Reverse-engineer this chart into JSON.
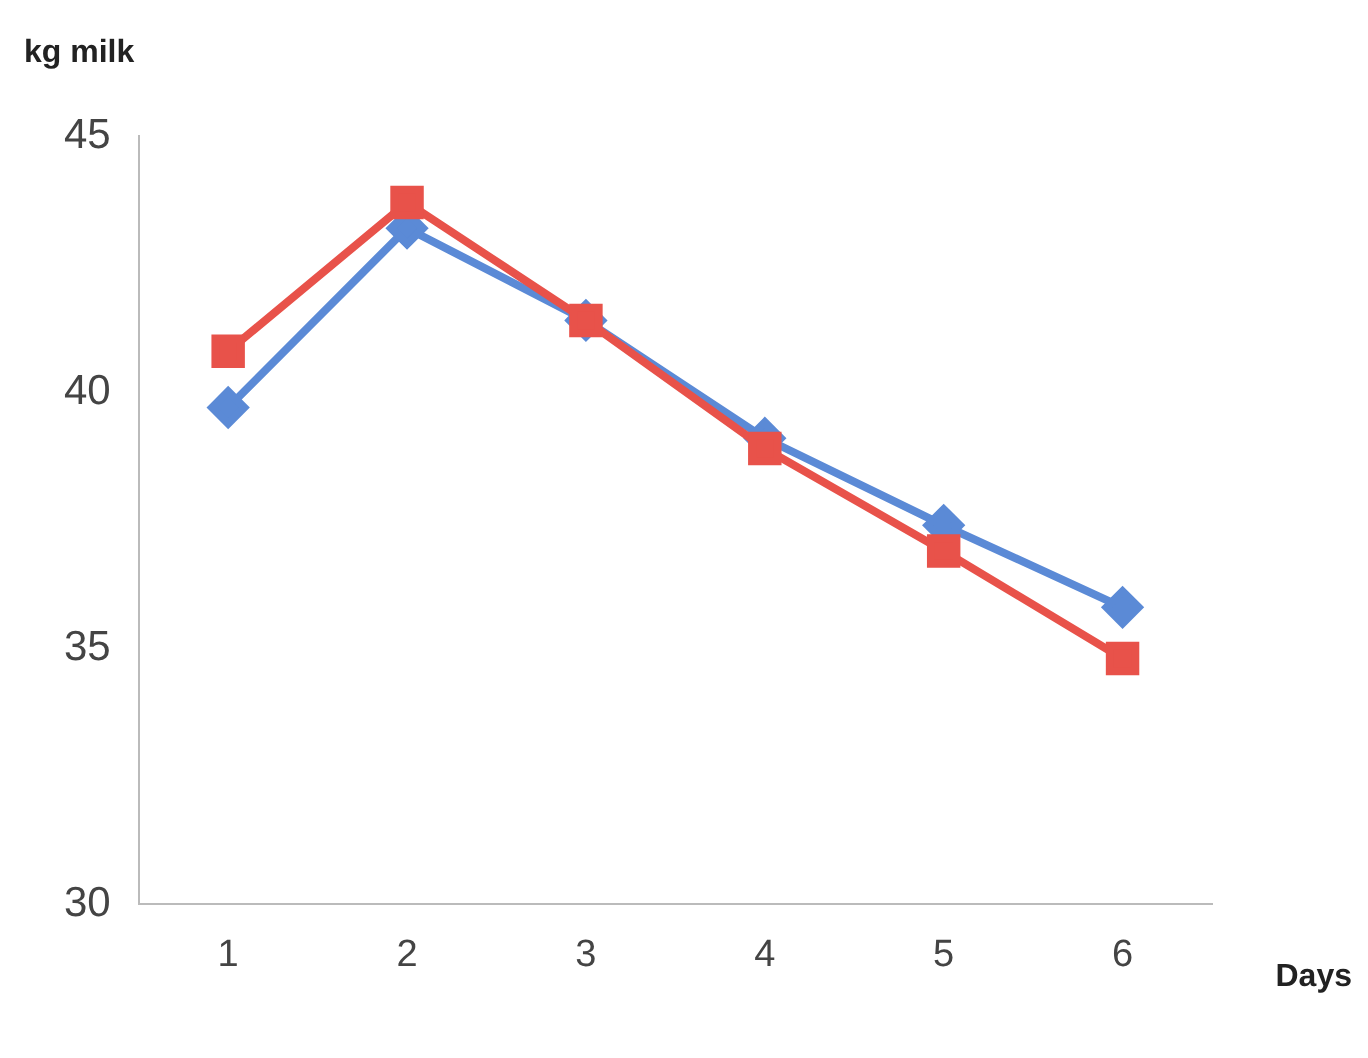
{
  "chart_data": {
    "type": "line",
    "xlabel": "Days",
    "ylabel": "kg milk",
    "categories": [
      "1",
      "2",
      "3",
      "4",
      "5",
      "6"
    ],
    "series": [
      {
        "color": "#5b8ad6",
        "marker": "diamond",
        "values": [
          39.7,
          43.2,
          41.4,
          39.1,
          37.4,
          35.8
        ]
      },
      {
        "color": "#e8524a",
        "marker": "square",
        "values": [
          40.8,
          43.7,
          41.4,
          38.9,
          36.9,
          34.8
        ]
      }
    ],
    "ylim": [
      30,
      45
    ],
    "yticks": [
      30,
      35,
      40,
      45
    ],
    "grid": false,
    "legend": false
  }
}
